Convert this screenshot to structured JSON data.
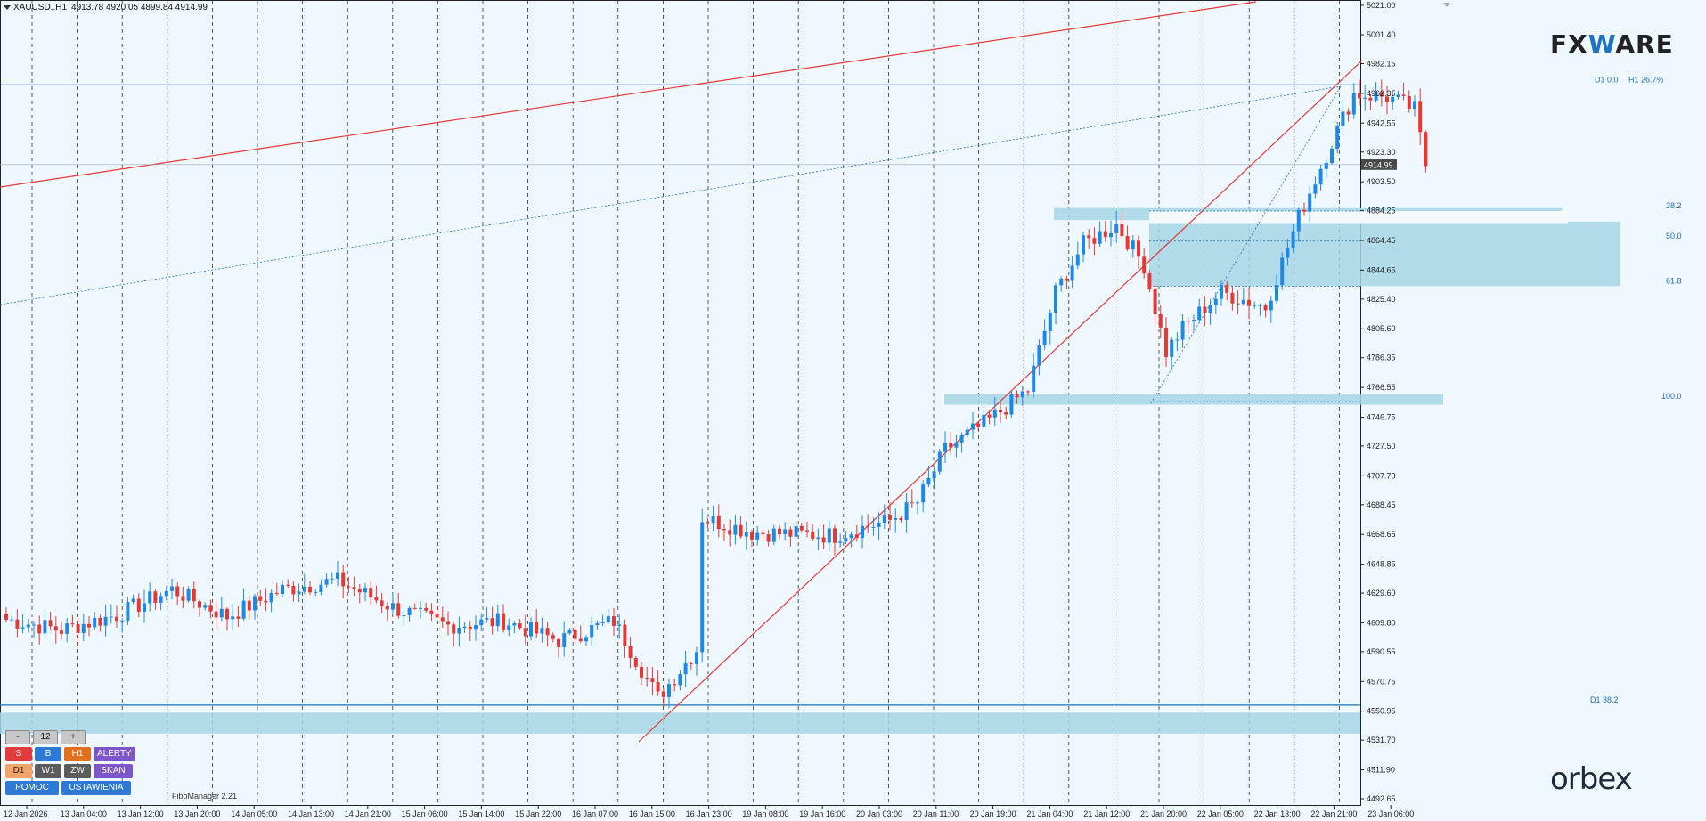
{
  "header": {
    "symbol": "XAUUSD..H1",
    "ohlc": "4913.78 4920.05 4899.84 4914.99"
  },
  "brand": {
    "fx_left": "FX",
    "fx_w": "W",
    "fx_right": "ARE",
    "orbex": "orbex"
  },
  "fibo_manager": "FiboManager 2.21",
  "panel": {
    "minus": "-",
    "count": "12",
    "plus": "+",
    "s": "S",
    "b": "B",
    "h1": "H1",
    "alerty": "ALERTY",
    "d1": "D1",
    "w1": "W1",
    "zw": "ZW",
    "skan": "SKAN",
    "pomoc": "POMOC",
    "ustawienia": "USTAWIENIA"
  },
  "colors": {
    "bull": "#1e88e5",
    "bear": "#e53935",
    "zone": "#a7d6e6",
    "level": "#1e6fb8",
    "trend": "#e53935"
  },
  "chart_data": {
    "type": "candlestick",
    "instrument": "XAUUSD",
    "timeframe": "H1",
    "current_price": "4914.99",
    "y_ticks": [
      "5021.00",
      "5001.40",
      "4982.15",
      "4962.35",
      "4942.55",
      "4923.30",
      "4903.50",
      "4884.25",
      "4864.45",
      "4844.65",
      "4825.40",
      "4805.60",
      "4786.35",
      "4766.55",
      "4746.75",
      "4727.50",
      "4707.70",
      "4688.45",
      "4668.65",
      "4648.85",
      "4629.60",
      "4609.80",
      "4590.55",
      "4570.75",
      "4550.95",
      "4531.70",
      "4511.90",
      "4492.65"
    ],
    "x_ticks": [
      "12 Jan 2026",
      "13 Jan 04:00",
      "13 Jan 12:00",
      "13 Jan 20:00",
      "14 Jan 05:00",
      "14 Jan 13:00",
      "14 Jan 21:00",
      "15 Jan 06:00",
      "15 Jan 14:00",
      "15 Jan 22:00",
      "16 Jan 07:00",
      "16 Jan 15:00",
      "16 Jan 23:00",
      "19 Jan 08:00",
      "19 Jan 16:00",
      "20 Jan 03:00",
      "20 Jan 11:00",
      "20 Jan 19:00",
      "21 Jan 04:00",
      "21 Jan 12:00",
      "21 Jan 20:00",
      "22 Jan 05:00",
      "22 Jan 13:00",
      "22 Jan 21:00",
      "23 Jan 06:00"
    ],
    "fib_labels": [
      "38.2",
      "50.0",
      "61.8",
      "100.0"
    ],
    "fib_levels": [
      4884,
      4864,
      4834,
      4757
    ],
    "level_labels": [
      "D1 0.0",
      "H1 26.7%",
      "D1 38.2"
    ],
    "levels": [
      4968,
      4555
    ],
    "key_anchors": [
      [
        0,
        4612
      ],
      [
        10,
        4605
      ],
      [
        20,
        4615
      ],
      [
        30,
        4632
      ],
      [
        40,
        4614
      ],
      [
        50,
        4632
      ],
      [
        60,
        4638
      ],
      [
        70,
        4620
      ],
      [
        80,
        4608
      ],
      [
        90,
        4611
      ],
      [
        100,
        4598
      ],
      [
        110,
        4611
      ],
      [
        118,
        4560
      ],
      [
        125,
        4592
      ],
      [
        126,
        4680
      ],
      [
        135,
        4670
      ],
      [
        150,
        4668
      ],
      [
        160,
        4678
      ],
      [
        165,
        4690
      ],
      [
        170,
        4725
      ],
      [
        178,
        4745
      ],
      [
        185,
        4765
      ],
      [
        190,
        4830
      ],
      [
        195,
        4862
      ],
      [
        201,
        4875
      ],
      [
        206,
        4848
      ],
      [
        210,
        4790
      ],
      [
        213,
        4806
      ],
      [
        220,
        4830
      ],
      [
        228,
        4820
      ],
      [
        234,
        4880
      ],
      [
        240,
        4930
      ],
      [
        244,
        4962
      ],
      [
        250,
        4960
      ],
      [
        255,
        4952
      ],
      [
        257,
        4914
      ]
    ]
  }
}
